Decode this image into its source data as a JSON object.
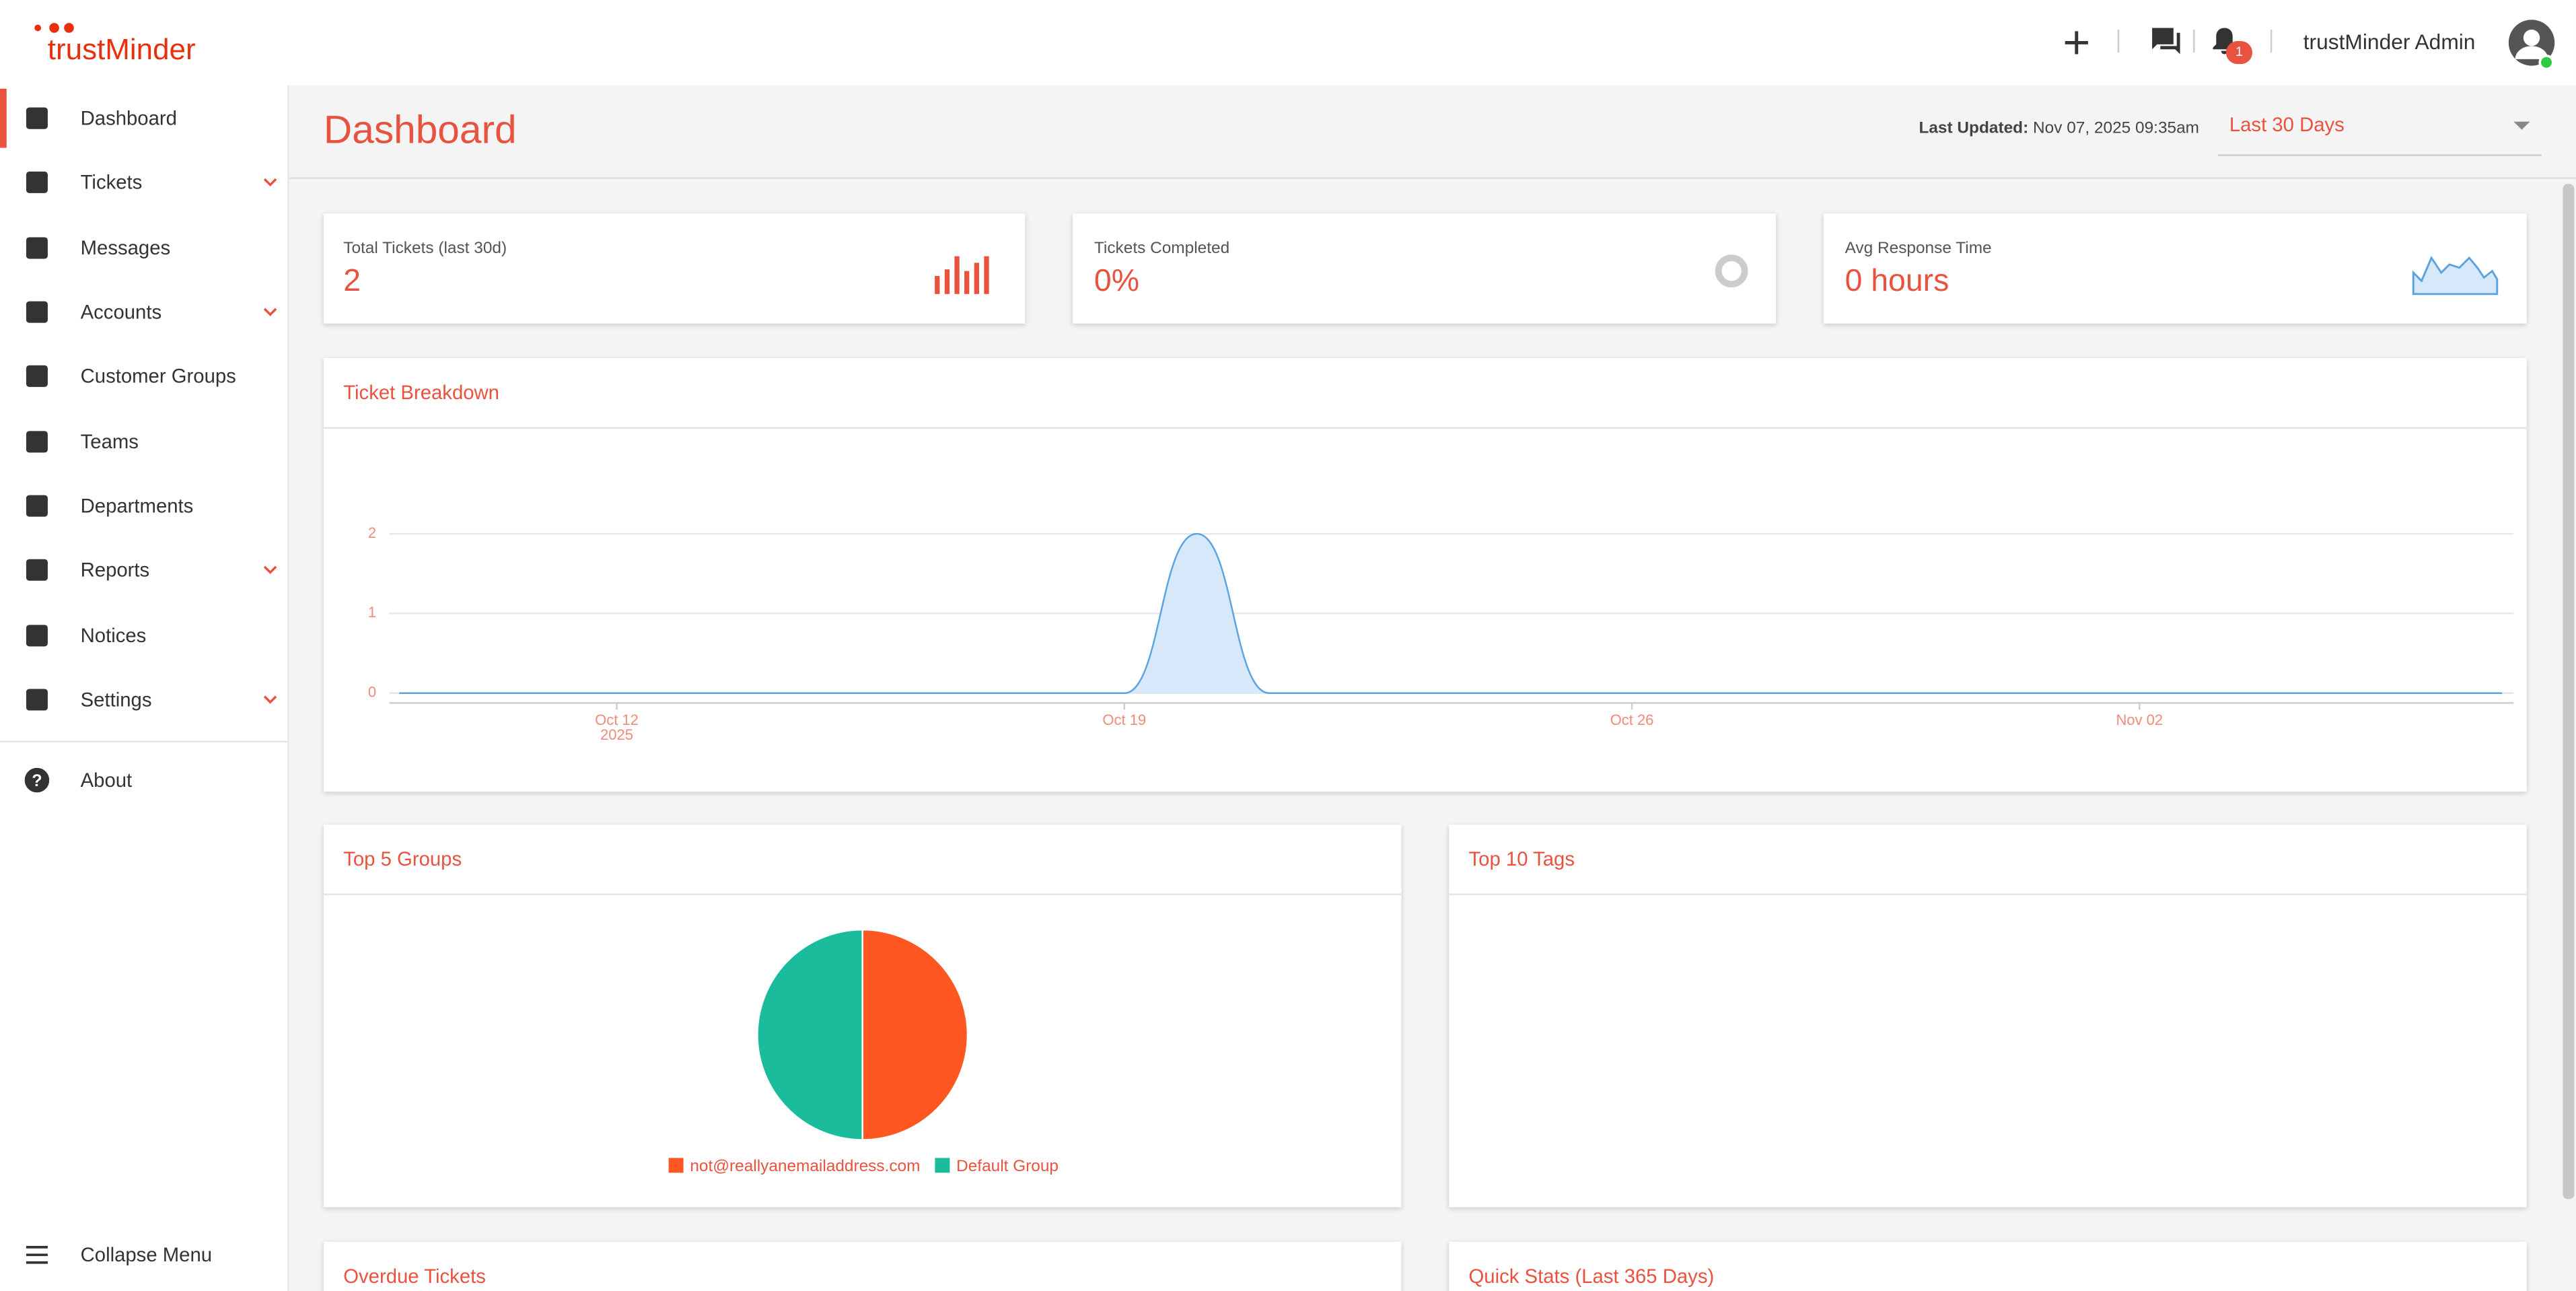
{
  "header": {
    "logo": "trustMinder",
    "notification_count": "1",
    "user": "trustMinder Admin"
  },
  "sidebar": {
    "items": [
      {
        "label": "Dashboard",
        "expandable": false,
        "active": true
      },
      {
        "label": "Tickets",
        "expandable": true,
        "active": false
      },
      {
        "label": "Messages",
        "expandable": false,
        "active": false
      },
      {
        "label": "Accounts",
        "expandable": true,
        "active": false
      },
      {
        "label": "Customer Groups",
        "expandable": false,
        "active": false
      },
      {
        "label": "Teams",
        "expandable": false,
        "active": false
      },
      {
        "label": "Departments",
        "expandable": false,
        "active": false
      },
      {
        "label": "Reports",
        "expandable": true,
        "active": false
      },
      {
        "label": "Notices",
        "expandable": false,
        "active": false
      },
      {
        "label": "Settings",
        "expandable": true,
        "active": false
      }
    ],
    "about": "About",
    "collapse": "Collapse Menu"
  },
  "page": {
    "title": "Dashboard",
    "last_updated_label": "Last Updated:",
    "last_updated": "Nov 07, 2025 09:35am",
    "range": "Last 30 Days"
  },
  "stats": [
    {
      "label": "Total Tickets (last 30d)",
      "value": "2"
    },
    {
      "label": "Tickets Completed",
      "value": "0%"
    },
    {
      "label": "Avg Response Time",
      "value": "0 hours"
    }
  ],
  "chart_data": [
    {
      "type": "line",
      "title": "Ticket Breakdown",
      "color": "#5ba3e0",
      "fill": "#d6e8fa",
      "categories": [
        null,
        null,
        null,
        "Oct 12",
        null,
        null,
        null,
        null,
        null,
        null,
        "Oct 19",
        null,
        null,
        null,
        null,
        null,
        null,
        "Oct 26",
        null,
        null,
        null,
        null,
        null,
        null,
        "Nov 02",
        null,
        null,
        null,
        null,
        null
      ],
      "year_label": "2025",
      "values": [
        0,
        0,
        0,
        0,
        0,
        0,
        0,
        0,
        0,
        0,
        0,
        2,
        0,
        0,
        0,
        0,
        0,
        0,
        0,
        0,
        0,
        0,
        0,
        0,
        0,
        0,
        0,
        0,
        0,
        0
      ],
      "ylim": [
        0,
        2
      ],
      "yticks": [
        0,
        1,
        2
      ],
      "grid": true
    },
    {
      "type": "pie",
      "title": "Top 5 Groups",
      "categories": [
        "not@reallyanemailaddress.com",
        "Default Group"
      ],
      "values": [
        1,
        1
      ],
      "colors": [
        "#ff5722",
        "#1abc9c"
      ]
    }
  ],
  "panels": {
    "top_tags": "Top 10 Tags",
    "overdue": "Overdue Tickets",
    "quick_stats": "Quick Stats (Last 365 Days)"
  }
}
